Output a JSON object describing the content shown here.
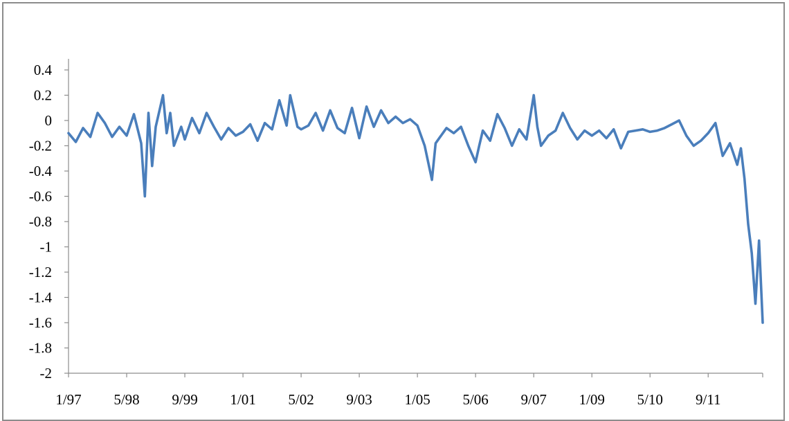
{
  "chart_data": {
    "type": "line",
    "title": "",
    "xlabel": "",
    "ylabel": "",
    "ylim": [
      -2,
      0.4
    ],
    "yticks": [
      0.4,
      0.2,
      0,
      -0.2,
      -0.4,
      -0.6,
      -0.8,
      -1,
      -1.2,
      -1.4,
      -1.6,
      -1.8,
      -2
    ],
    "ytick_labels": [
      "0.4",
      "0.2",
      "0",
      "-0.2",
      "-0.4",
      "-0.6",
      "-0.8",
      "-1",
      "-1.2",
      "-1.4",
      "-1.6",
      "-1.8",
      "-2"
    ],
    "xlim": [
      "1/97",
      "12/12"
    ],
    "xtick_labels": [
      "1/97",
      "5/98",
      "9/99",
      "1/01",
      "5/02",
      "9/03",
      "1/05",
      "5/06",
      "9/07",
      "1/09",
      "5/10",
      "9/11"
    ],
    "xticks": [
      "1997-01",
      "1998-05",
      "1999-09",
      "2001-01",
      "2002-05",
      "2003-09",
      "2005-01",
      "2006-05",
      "2007-09",
      "2009-01",
      "2010-05",
      "2011-09"
    ],
    "grid": false,
    "legend": "none",
    "series": [
      {
        "color": "#4a7ebb",
        "x": [
          "1997-01",
          "1997-03",
          "1997-05",
          "1997-07",
          "1997-09",
          "1997-11",
          "1998-01",
          "1998-03",
          "1998-05",
          "1998-07",
          "1998-09",
          "1998-10",
          "1998-11",
          "1998-12",
          "1999-01",
          "1999-03",
          "1999-04",
          "1999-05",
          "1999-06",
          "1999-08",
          "1999-09",
          "1999-11",
          "2000-01",
          "2000-03",
          "2000-05",
          "2000-07",
          "2000-09",
          "2000-11",
          "2001-01",
          "2001-03",
          "2001-05",
          "2001-07",
          "2001-09",
          "2001-11",
          "2002-01",
          "2002-02",
          "2002-04",
          "2002-05",
          "2002-07",
          "2002-09",
          "2002-11",
          "2003-01",
          "2003-03",
          "2003-05",
          "2003-07",
          "2003-09",
          "2003-11",
          "2004-01",
          "2004-03",
          "2004-05",
          "2004-07",
          "2004-09",
          "2004-11",
          "2005-01",
          "2005-03",
          "2005-05",
          "2005-06",
          "2005-07",
          "2005-09",
          "2005-11",
          "2006-01",
          "2006-03",
          "2006-05",
          "2006-06",
          "2006-07",
          "2006-09",
          "2006-11",
          "2007-01",
          "2007-03",
          "2007-05",
          "2007-07",
          "2007-09",
          "2007-10",
          "2007-11",
          "2008-01",
          "2008-03",
          "2008-05",
          "2008-07",
          "2008-09",
          "2008-11",
          "2009-01",
          "2009-03",
          "2009-05",
          "2009-07",
          "2009-09",
          "2009-11",
          "2010-01",
          "2010-03",
          "2010-05",
          "2010-07",
          "2010-09",
          "2010-11",
          "2011-01",
          "2011-03",
          "2011-05",
          "2011-07",
          "2011-09",
          "2011-11",
          "2012-01",
          "2012-03",
          "2012-05",
          "2012-06",
          "2012-07",
          "2012-08",
          "2012-09",
          "2012-10",
          "2012-11",
          "2012-12"
        ],
        "values": [
          -0.1,
          -0.17,
          -0.06,
          -0.13,
          0.06,
          -0.02,
          -0.13,
          -0.05,
          -0.12,
          0.05,
          -0.18,
          -0.6,
          0.06,
          -0.36,
          -0.05,
          0.2,
          -0.1,
          0.06,
          -0.2,
          -0.05,
          -0.15,
          0.02,
          -0.1,
          0.06,
          -0.05,
          -0.15,
          -0.06,
          -0.12,
          -0.09,
          -0.03,
          -0.16,
          -0.02,
          -0.07,
          0.16,
          -0.04,
          0.2,
          -0.05,
          -0.07,
          -0.04,
          0.06,
          -0.08,
          0.08,
          -0.06,
          -0.1,
          0.1,
          -0.14,
          0.11,
          -0.05,
          0.08,
          -0.02,
          0.03,
          -0.02,
          0.01,
          -0.04,
          -0.2,
          -0.47,
          -0.18,
          -0.14,
          -0.06,
          -0.1,
          -0.05,
          -0.2,
          -0.33,
          -0.2,
          -0.08,
          -0.16,
          0.05,
          -0.06,
          -0.2,
          -0.07,
          -0.15,
          0.2,
          -0.05,
          -0.2,
          -0.12,
          -0.08,
          0.06,
          -0.06,
          -0.15,
          -0.08,
          -0.12,
          -0.08,
          -0.14,
          -0.07,
          -0.22,
          -0.09,
          -0.08,
          -0.07,
          -0.09,
          -0.08,
          -0.06,
          -0.03,
          0.0,
          -0.12,
          -0.2,
          -0.16,
          -0.1,
          -0.02,
          -0.28,
          -0.18,
          -0.35,
          -0.22,
          -0.46,
          -0.82,
          -1.05,
          -1.45,
          -0.95,
          -1.6
        ]
      }
    ]
  }
}
